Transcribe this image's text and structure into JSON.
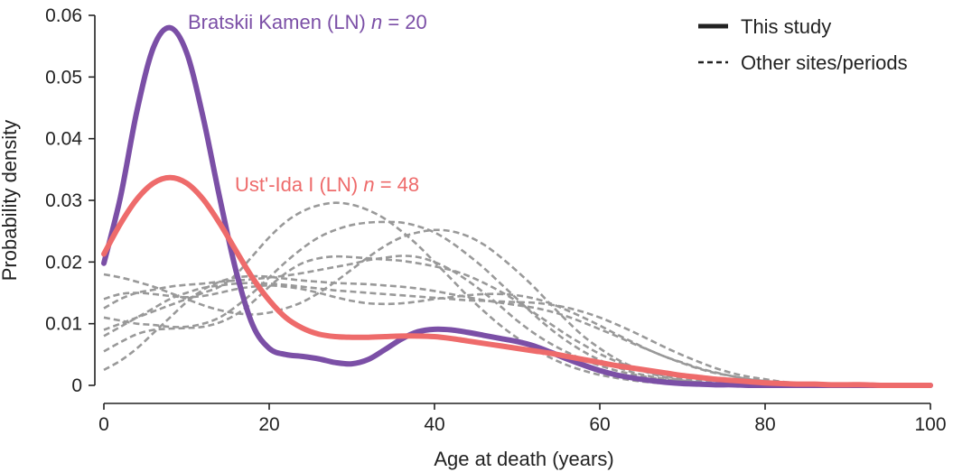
{
  "chart_data": {
    "type": "line",
    "xlabel": "Age at death (years)",
    "ylabel": "Probability density",
    "xlim": [
      0,
      100
    ],
    "ylim": [
      0,
      0.06
    ],
    "xticks": [
      0,
      20,
      40,
      60,
      80,
      100
    ],
    "xtick_labels": [
      "0",
      "20",
      "40",
      "60",
      "80",
      "100"
    ],
    "yticks": [
      0,
      0.01,
      0.02,
      0.03,
      0.04,
      0.05,
      0.06
    ],
    "ytick_labels": [
      "0",
      "0.01",
      "0.02",
      "0.03",
      "0.04",
      "0.05",
      "0.06"
    ],
    "grid": false,
    "legend_position": "top-right",
    "legend": [
      {
        "label": "This study",
        "style": "solid"
      },
      {
        "label": "Other sites/periods",
        "style": "dashed"
      }
    ],
    "x": [
      0,
      2,
      4,
      6,
      8,
      10,
      12,
      14,
      16,
      18,
      20,
      22,
      24,
      26,
      28,
      30,
      32,
      34,
      36,
      38,
      40,
      42,
      44,
      46,
      48,
      50,
      52,
      54,
      56,
      58,
      60,
      62,
      64,
      66,
      68,
      70,
      72,
      74,
      76,
      78,
      80,
      82,
      84,
      86,
      88,
      90,
      92,
      94,
      96,
      98,
      100
    ],
    "series": [
      {
        "style": "solid",
        "color": "#7B4FA6",
        "values": [
          0.0198,
          0.0305,
          0.0445,
          0.0548,
          0.058,
          0.054,
          0.0435,
          0.0305,
          0.0185,
          0.0098,
          0.006,
          0.005,
          0.0047,
          0.0043,
          0.0037,
          0.0035,
          0.0042,
          0.0058,
          0.0075,
          0.0087,
          0.0091,
          0.009,
          0.0086,
          0.0081,
          0.0076,
          0.0071,
          0.0064,
          0.0054,
          0.0043,
          0.0033,
          0.0024,
          0.0017,
          0.0012,
          0.0008,
          0.0005,
          0.0003,
          0.0002,
          0.0001,
          0.0001,
          0.0,
          0.0,
          0.0,
          0.0,
          0.0,
          0.0,
          0.0,
          0.0,
          0.0,
          0.0,
          0.0,
          0.0
        ]
      },
      {
        "style": "solid",
        "color": "#EE6B6B",
        "values": [
          0.0213,
          0.0262,
          0.0302,
          0.0328,
          0.0337,
          0.0328,
          0.0302,
          0.0263,
          0.0218,
          0.0174,
          0.0138,
          0.011,
          0.0093,
          0.0083,
          0.0079,
          0.0078,
          0.0078,
          0.0079,
          0.008,
          0.008,
          0.0079,
          0.0076,
          0.0072,
          0.0068,
          0.0064,
          0.006,
          0.0056,
          0.0052,
          0.0047,
          0.0042,
          0.0037,
          0.0032,
          0.0028,
          0.0024,
          0.002,
          0.0016,
          0.0013,
          0.001,
          0.0008,
          0.0006,
          0.0004,
          0.0003,
          0.0002,
          0.0002,
          0.0001,
          0.0001,
          0.0001,
          0.0,
          0.0,
          0.0,
          0.0
        ]
      },
      {
        "style": "dashed",
        "color": "#999999",
        "values": [
          0.0125,
          0.014,
          0.015,
          0.0155,
          0.016,
          0.0163,
          0.0165,
          0.0168,
          0.017,
          0.0172,
          0.0175,
          0.0178,
          0.0182,
          0.0187,
          0.0192,
          0.0197,
          0.0203,
          0.0207,
          0.021,
          0.0208,
          0.02,
          0.0187,
          0.017,
          0.015,
          0.0128,
          0.0105,
          0.0085,
          0.0068,
          0.0054,
          0.0042,
          0.0032,
          0.0024,
          0.0018,
          0.0013,
          0.0009,
          0.0006,
          0.0004,
          0.0003,
          0.0002,
          0.0001,
          0.0001,
          0.0,
          0.0,
          0.0,
          0.0,
          0.0,
          0.0,
          0.0,
          0.0,
          0.0,
          0.0
        ]
      },
      {
        "style": "dashed",
        "color": "#999999",
        "values": [
          0.018,
          0.0175,
          0.0168,
          0.016,
          0.015,
          0.014,
          0.013,
          0.0122,
          0.0117,
          0.0115,
          0.0118,
          0.0125,
          0.0135,
          0.015,
          0.0168,
          0.0188,
          0.0208,
          0.0226,
          0.024,
          0.0248,
          0.0252,
          0.025,
          0.0242,
          0.0228,
          0.0208,
          0.0185,
          0.016,
          0.0132,
          0.0105,
          0.008,
          0.006,
          0.0043,
          0.003,
          0.002,
          0.0013,
          0.0008,
          0.0005,
          0.0003,
          0.0002,
          0.0001,
          0.0001,
          0.0,
          0.0,
          0.0,
          0.0,
          0.0,
          0.0,
          0.0,
          0.0,
          0.0,
          0.0
        ]
      },
      {
        "style": "dashed",
        "color": "#999999",
        "values": [
          0.009,
          0.01,
          0.011,
          0.012,
          0.013,
          0.014,
          0.015,
          0.016,
          0.018,
          0.021,
          0.024,
          0.0265,
          0.0282,
          0.0292,
          0.0296,
          0.0293,
          0.0284,
          0.027,
          0.025,
          0.0227,
          0.02,
          0.0173,
          0.0145,
          0.012,
          0.0097,
          0.0077,
          0.006,
          0.0045,
          0.0033,
          0.0024,
          0.0017,
          0.0012,
          0.0008,
          0.0005,
          0.0003,
          0.0002,
          0.0001,
          0.0001,
          0.0,
          0.0,
          0.0,
          0.0,
          0.0,
          0.0,
          0.0,
          0.0,
          0.0,
          0.0,
          0.0,
          0.0,
          0.0
        ]
      },
      {
        "style": "dashed",
        "color": "#999999",
        "values": [
          0.011,
          0.0105,
          0.01,
          0.0098,
          0.0095,
          0.0095,
          0.01,
          0.011,
          0.0128,
          0.015,
          0.0175,
          0.02,
          0.0222,
          0.024,
          0.0252,
          0.026,
          0.0264,
          0.0265,
          0.0264,
          0.0258,
          0.0248,
          0.0232,
          0.0212,
          0.019,
          0.0165,
          0.014,
          0.0115,
          0.0092,
          0.0072,
          0.0055,
          0.0041,
          0.003,
          0.0021,
          0.0015,
          0.001,
          0.0007,
          0.0004,
          0.0003,
          0.0002,
          0.0001,
          0.0001,
          0.0,
          0.0,
          0.0,
          0.0,
          0.0,
          0.0,
          0.0,
          0.0,
          0.0,
          0.0
        ]
      },
      {
        "style": "dashed",
        "color": "#999999",
        "values": [
          0.014,
          0.0148,
          0.015,
          0.0148,
          0.0145,
          0.0143,
          0.0145,
          0.015,
          0.0156,
          0.016,
          0.0162,
          0.016,
          0.0156,
          0.015,
          0.0143,
          0.0137,
          0.0133,
          0.0132,
          0.0133,
          0.0136,
          0.014,
          0.0143,
          0.0146,
          0.0148,
          0.0148,
          0.0146,
          0.0141,
          0.0133,
          0.0122,
          0.011,
          0.0097,
          0.0083,
          0.007,
          0.0057,
          0.0046,
          0.0036,
          0.0027,
          0.002,
          0.0015,
          0.001,
          0.0007,
          0.0005,
          0.0003,
          0.0002,
          0.0001,
          0.0001,
          0.0,
          0.0,
          0.0,
          0.0,
          0.0
        ]
      },
      {
        "style": "dashed",
        "color": "#999999",
        "values": [
          0.0025,
          0.004,
          0.006,
          0.0085,
          0.011,
          0.0135,
          0.0155,
          0.0168,
          0.0175,
          0.0177,
          0.0176,
          0.0173,
          0.017,
          0.0168,
          0.0166,
          0.0165,
          0.0164,
          0.0162,
          0.016,
          0.0157,
          0.0153,
          0.0148,
          0.0143,
          0.0138,
          0.0134,
          0.013,
          0.0126,
          0.012,
          0.0112,
          0.0102,
          0.0091,
          0.008,
          0.0068,
          0.0057,
          0.0046,
          0.0037,
          0.0028,
          0.0021,
          0.0015,
          0.001,
          0.0007,
          0.0004,
          0.0003,
          0.0002,
          0.0001,
          0.0,
          0.0,
          0.0,
          0.0,
          0.0,
          0.0
        ]
      },
      {
        "style": "dashed",
        "color": "#999999",
        "values": [
          0.0055,
          0.007,
          0.0083,
          0.009,
          0.0092,
          0.0093,
          0.0095,
          0.0102,
          0.0115,
          0.0135,
          0.016,
          0.0182,
          0.0198,
          0.0206,
          0.0209,
          0.0208,
          0.0206,
          0.0204,
          0.0202,
          0.0198,
          0.0193,
          0.0187,
          0.0178,
          0.0166,
          0.0152,
          0.0136,
          0.0118,
          0.01,
          0.0082,
          0.0066,
          0.0051,
          0.0039,
          0.0029,
          0.0021,
          0.0015,
          0.001,
          0.0007,
          0.0004,
          0.0003,
          0.0002,
          0.0001,
          0.0,
          0.0,
          0.0,
          0.0,
          0.0,
          0.0,
          0.0,
          0.0,
          0.0,
          0.0
        ]
      },
      {
        "style": "dashed",
        "color": "#999999",
        "values": [
          0.008,
          0.0095,
          0.011,
          0.0125,
          0.014,
          0.015,
          0.0158,
          0.0162,
          0.0165,
          0.0166,
          0.0165,
          0.0163,
          0.016,
          0.0157,
          0.0154,
          0.0152,
          0.015,
          0.0148,
          0.0146,
          0.0144,
          0.0142,
          0.014,
          0.0138,
          0.0137,
          0.0136,
          0.0135,
          0.0134,
          0.0131,
          0.0126,
          0.0119,
          0.011,
          0.0099,
          0.0087,
          0.0074,
          0.0061,
          0.0049,
          0.0038,
          0.0028,
          0.002,
          0.0014,
          0.001,
          0.0006,
          0.0004,
          0.0003,
          0.0002,
          0.0001,
          0.0001,
          0.0,
          0.0,
          0.0,
          0.0
        ]
      }
    ],
    "annotations": [
      {
        "series_index": 0,
        "name": "Bratskii Kamen (LN)",
        "n_label": "n",
        "eq": " = 20",
        "color": "#7B4FA6"
      },
      {
        "series_index": 1,
        "name": "Ust'-Ida I (LN)",
        "n_label": "n",
        "eq": " = 48",
        "color": "#EE6B6B"
      }
    ]
  }
}
